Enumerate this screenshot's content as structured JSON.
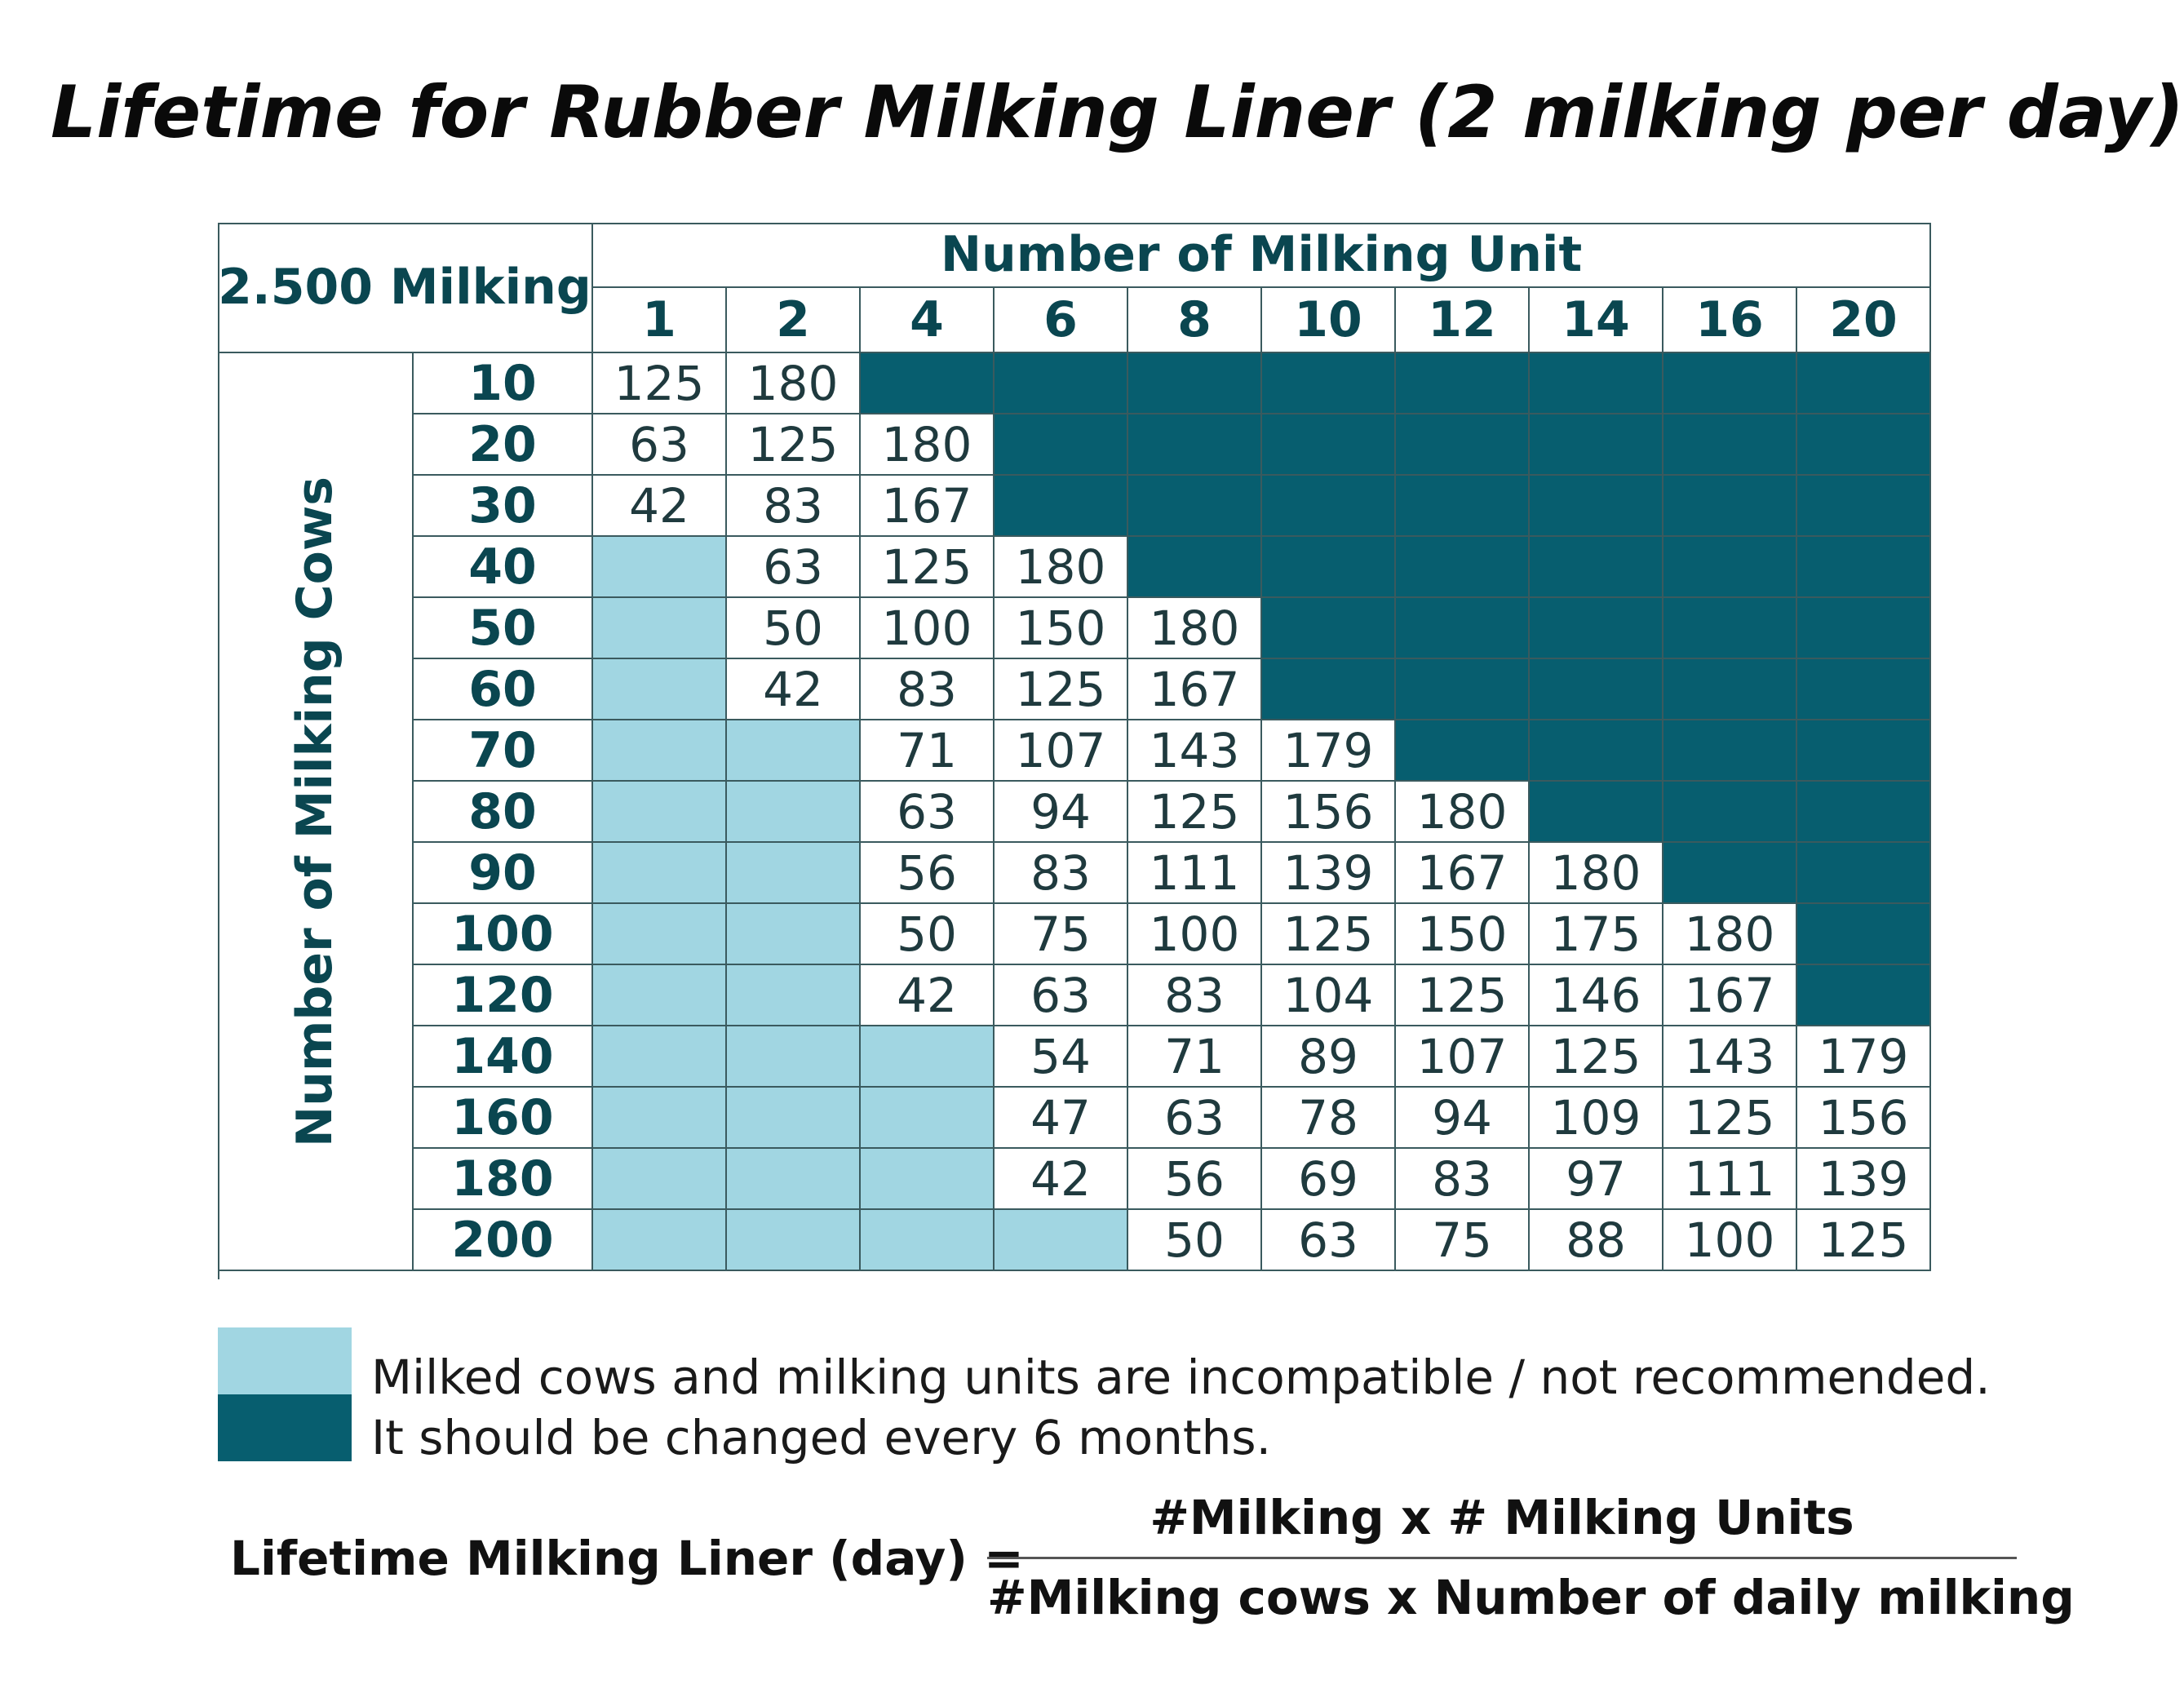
{
  "title": "Lifetime for Rubber Milking Liner (2 milking per day)",
  "table": {
    "corner_label": "2.500 Milking",
    "column_group_label": "Number of Milking Unit",
    "row_group_label": "Number of Milking Cows",
    "column_headers": [
      "1",
      "2",
      "4",
      "6",
      "8",
      "10",
      "12",
      "14",
      "16",
      "20"
    ],
    "row_headers": [
      "10",
      "20",
      "30",
      "40",
      "50",
      "60",
      "70",
      "80",
      "90",
      "100",
      "120",
      "140",
      "160",
      "180",
      "200"
    ],
    "cells": [
      [
        {
          "v": "125",
          "s": "val"
        },
        {
          "v": "180",
          "s": "val"
        },
        {
          "v": "",
          "s": "dark"
        },
        {
          "v": "",
          "s": "dark"
        },
        {
          "v": "",
          "s": "dark"
        },
        {
          "v": "",
          "s": "dark"
        },
        {
          "v": "",
          "s": "dark"
        },
        {
          "v": "",
          "s": "dark"
        },
        {
          "v": "",
          "s": "dark"
        },
        {
          "v": "",
          "s": "dark"
        }
      ],
      [
        {
          "v": "63",
          "s": "val"
        },
        {
          "v": "125",
          "s": "val"
        },
        {
          "v": "180",
          "s": "val"
        },
        {
          "v": "",
          "s": "dark"
        },
        {
          "v": "",
          "s": "dark"
        },
        {
          "v": "",
          "s": "dark"
        },
        {
          "v": "",
          "s": "dark"
        },
        {
          "v": "",
          "s": "dark"
        },
        {
          "v": "",
          "s": "dark"
        },
        {
          "v": "",
          "s": "dark"
        }
      ],
      [
        {
          "v": "42",
          "s": "val"
        },
        {
          "v": "83",
          "s": "val"
        },
        {
          "v": "167",
          "s": "val"
        },
        {
          "v": "",
          "s": "dark"
        },
        {
          "v": "",
          "s": "dark"
        },
        {
          "v": "",
          "s": "dark"
        },
        {
          "v": "",
          "s": "dark"
        },
        {
          "v": "",
          "s": "dark"
        },
        {
          "v": "",
          "s": "dark"
        },
        {
          "v": "",
          "s": "dark"
        }
      ],
      [
        {
          "v": "",
          "s": "light"
        },
        {
          "v": "63",
          "s": "val"
        },
        {
          "v": "125",
          "s": "val"
        },
        {
          "v": "180",
          "s": "val"
        },
        {
          "v": "",
          "s": "dark"
        },
        {
          "v": "",
          "s": "dark"
        },
        {
          "v": "",
          "s": "dark"
        },
        {
          "v": "",
          "s": "dark"
        },
        {
          "v": "",
          "s": "dark"
        },
        {
          "v": "",
          "s": "dark"
        }
      ],
      [
        {
          "v": "",
          "s": "light"
        },
        {
          "v": "50",
          "s": "val"
        },
        {
          "v": "100",
          "s": "val"
        },
        {
          "v": "150",
          "s": "val"
        },
        {
          "v": "180",
          "s": "val"
        },
        {
          "v": "",
          "s": "dark"
        },
        {
          "v": "",
          "s": "dark"
        },
        {
          "v": "",
          "s": "dark"
        },
        {
          "v": "",
          "s": "dark"
        },
        {
          "v": "",
          "s": "dark"
        }
      ],
      [
        {
          "v": "",
          "s": "light"
        },
        {
          "v": "42",
          "s": "val"
        },
        {
          "v": "83",
          "s": "val"
        },
        {
          "v": "125",
          "s": "val"
        },
        {
          "v": "167",
          "s": "val"
        },
        {
          "v": "",
          "s": "dark"
        },
        {
          "v": "",
          "s": "dark"
        },
        {
          "v": "",
          "s": "dark"
        },
        {
          "v": "",
          "s": "dark"
        },
        {
          "v": "",
          "s": "dark"
        }
      ],
      [
        {
          "v": "",
          "s": "light"
        },
        {
          "v": "",
          "s": "light"
        },
        {
          "v": "71",
          "s": "val"
        },
        {
          "v": "107",
          "s": "val"
        },
        {
          "v": "143",
          "s": "val"
        },
        {
          "v": "179",
          "s": "val"
        },
        {
          "v": "",
          "s": "dark"
        },
        {
          "v": "",
          "s": "dark"
        },
        {
          "v": "",
          "s": "dark"
        },
        {
          "v": "",
          "s": "dark"
        }
      ],
      [
        {
          "v": "",
          "s": "light"
        },
        {
          "v": "",
          "s": "light"
        },
        {
          "v": "63",
          "s": "val"
        },
        {
          "v": "94",
          "s": "val"
        },
        {
          "v": "125",
          "s": "val"
        },
        {
          "v": "156",
          "s": "val"
        },
        {
          "v": "180",
          "s": "val"
        },
        {
          "v": "",
          "s": "dark"
        },
        {
          "v": "",
          "s": "dark"
        },
        {
          "v": "",
          "s": "dark"
        }
      ],
      [
        {
          "v": "",
          "s": "light"
        },
        {
          "v": "",
          "s": "light"
        },
        {
          "v": "56",
          "s": "val"
        },
        {
          "v": "83",
          "s": "val"
        },
        {
          "v": "111",
          "s": "val"
        },
        {
          "v": "139",
          "s": "val"
        },
        {
          "v": "167",
          "s": "val"
        },
        {
          "v": "180",
          "s": "val"
        },
        {
          "v": "",
          "s": "dark"
        },
        {
          "v": "",
          "s": "dark"
        }
      ],
      [
        {
          "v": "",
          "s": "light"
        },
        {
          "v": "",
          "s": "light"
        },
        {
          "v": "50",
          "s": "val"
        },
        {
          "v": "75",
          "s": "val"
        },
        {
          "v": "100",
          "s": "val"
        },
        {
          "v": "125",
          "s": "val"
        },
        {
          "v": "150",
          "s": "val"
        },
        {
          "v": "175",
          "s": "val"
        },
        {
          "v": "180",
          "s": "val"
        },
        {
          "v": "",
          "s": "dark"
        }
      ],
      [
        {
          "v": "",
          "s": "light"
        },
        {
          "v": "",
          "s": "light"
        },
        {
          "v": "42",
          "s": "val"
        },
        {
          "v": "63",
          "s": "val"
        },
        {
          "v": "83",
          "s": "val"
        },
        {
          "v": "104",
          "s": "val"
        },
        {
          "v": "125",
          "s": "val"
        },
        {
          "v": "146",
          "s": "val"
        },
        {
          "v": "167",
          "s": "val"
        },
        {
          "v": "",
          "s": "dark"
        }
      ],
      [
        {
          "v": "",
          "s": "light"
        },
        {
          "v": "",
          "s": "light"
        },
        {
          "v": "",
          "s": "light"
        },
        {
          "v": "54",
          "s": "val"
        },
        {
          "v": "71",
          "s": "val"
        },
        {
          "v": "89",
          "s": "val"
        },
        {
          "v": "107",
          "s": "val"
        },
        {
          "v": "125",
          "s": "val"
        },
        {
          "v": "143",
          "s": "val"
        },
        {
          "v": "179",
          "s": "val"
        }
      ],
      [
        {
          "v": "",
          "s": "light"
        },
        {
          "v": "",
          "s": "light"
        },
        {
          "v": "",
          "s": "light"
        },
        {
          "v": "47",
          "s": "val"
        },
        {
          "v": "63",
          "s": "val"
        },
        {
          "v": "78",
          "s": "val"
        },
        {
          "v": "94",
          "s": "val"
        },
        {
          "v": "109",
          "s": "val"
        },
        {
          "v": "125",
          "s": "val"
        },
        {
          "v": "156",
          "s": "val"
        }
      ],
      [
        {
          "v": "",
          "s": "light"
        },
        {
          "v": "",
          "s": "light"
        },
        {
          "v": "",
          "s": "light"
        },
        {
          "v": "42",
          "s": "val"
        },
        {
          "v": "56",
          "s": "val"
        },
        {
          "v": "69",
          "s": "val"
        },
        {
          "v": "83",
          "s": "val"
        },
        {
          "v": "97",
          "s": "val"
        },
        {
          "v": "111",
          "s": "val"
        },
        {
          "v": "139",
          "s": "val"
        }
      ],
      [
        {
          "v": "",
          "s": "light"
        },
        {
          "v": "",
          "s": "light"
        },
        {
          "v": "",
          "s": "light"
        },
        {
          "v": "",
          "s": "light"
        },
        {
          "v": "50",
          "s": "val"
        },
        {
          "v": "63",
          "s": "val"
        },
        {
          "v": "75",
          "s": "val"
        },
        {
          "v": "88",
          "s": "val"
        },
        {
          "v": "100",
          "s": "val"
        },
        {
          "v": "125",
          "s": "val"
        }
      ]
    ]
  },
  "legend": {
    "incompatible_text": "Milked cows and milking units are incompatible / not recommended.",
    "six_months_text": "It should be changed every 6 months."
  },
  "formula": {
    "lhs": "Lifetime Milking Liner (day) =",
    "numerator": "#Milking x # Milking Units",
    "denominator": "#Milking cows x Number of daily milking"
  },
  "colors": {
    "dark_cell": "#075e6f",
    "light_cell": "#a1d6e2",
    "header_text": "#0a4650",
    "grid_line": "#3a5a5e"
  }
}
